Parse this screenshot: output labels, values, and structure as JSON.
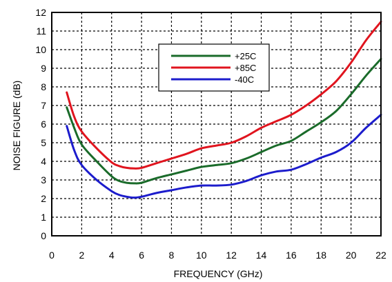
{
  "chart_data": {
    "type": "line",
    "xlabel": "FREQUENCY (GHz)",
    "ylabel": "NOISE FIGURE (dB)",
    "xlim": [
      0,
      22
    ],
    "ylim": [
      0,
      12
    ],
    "x_ticks": [
      "0",
      "2",
      "4",
      "6",
      "8",
      "10",
      "12",
      "14",
      "16",
      "18",
      "20",
      "22"
    ],
    "y_ticks": [
      "0",
      "1",
      "2",
      "3",
      "4",
      "5",
      "6",
      "7",
      "8",
      "9",
      "10",
      "11",
      "12"
    ],
    "grid": true,
    "legend_position": "top-center",
    "series": [
      {
        "name": "+25C",
        "color": "#1a6b2a",
        "x": [
          1,
          1.5,
          2,
          3,
          4,
          4.5,
          5,
          5.5,
          6,
          7,
          8,
          9,
          10,
          11,
          12,
          13,
          14,
          15,
          16,
          17,
          18,
          19,
          20,
          21,
          22
        ],
        "y": [
          6.9,
          5.8,
          4.9,
          4.0,
          3.2,
          2.95,
          2.85,
          2.82,
          2.85,
          3.1,
          3.3,
          3.5,
          3.7,
          3.8,
          3.9,
          4.15,
          4.5,
          4.85,
          5.1,
          5.6,
          6.1,
          6.7,
          7.6,
          8.6,
          9.5
        ]
      },
      {
        "name": "+85C",
        "color": "#e0141e",
        "x": [
          1,
          1.5,
          2,
          3,
          4,
          4.5,
          5,
          5.5,
          6,
          7,
          8,
          9,
          10,
          11,
          12,
          13,
          14,
          15,
          16,
          17,
          18,
          19,
          20,
          21,
          22
        ],
        "y": [
          7.7,
          6.4,
          5.6,
          4.7,
          3.95,
          3.75,
          3.65,
          3.62,
          3.65,
          3.9,
          4.15,
          4.4,
          4.7,
          4.85,
          5.0,
          5.35,
          5.8,
          6.15,
          6.5,
          7.0,
          7.6,
          8.3,
          9.3,
          10.5,
          11.5
        ]
      },
      {
        "name": "-40C",
        "color": "#1c1ccc",
        "x": [
          1,
          1.5,
          2,
          3,
          4,
          4.5,
          5,
          5.5,
          6,
          7,
          8,
          9,
          10,
          11,
          12,
          13,
          14,
          15,
          16,
          17,
          18,
          19,
          20,
          21,
          22
        ],
        "y": [
          5.9,
          4.6,
          3.8,
          3.0,
          2.4,
          2.2,
          2.1,
          2.05,
          2.1,
          2.3,
          2.45,
          2.6,
          2.7,
          2.7,
          2.75,
          2.95,
          3.25,
          3.45,
          3.55,
          3.85,
          4.2,
          4.5,
          5.0,
          5.8,
          6.5
        ]
      }
    ]
  }
}
